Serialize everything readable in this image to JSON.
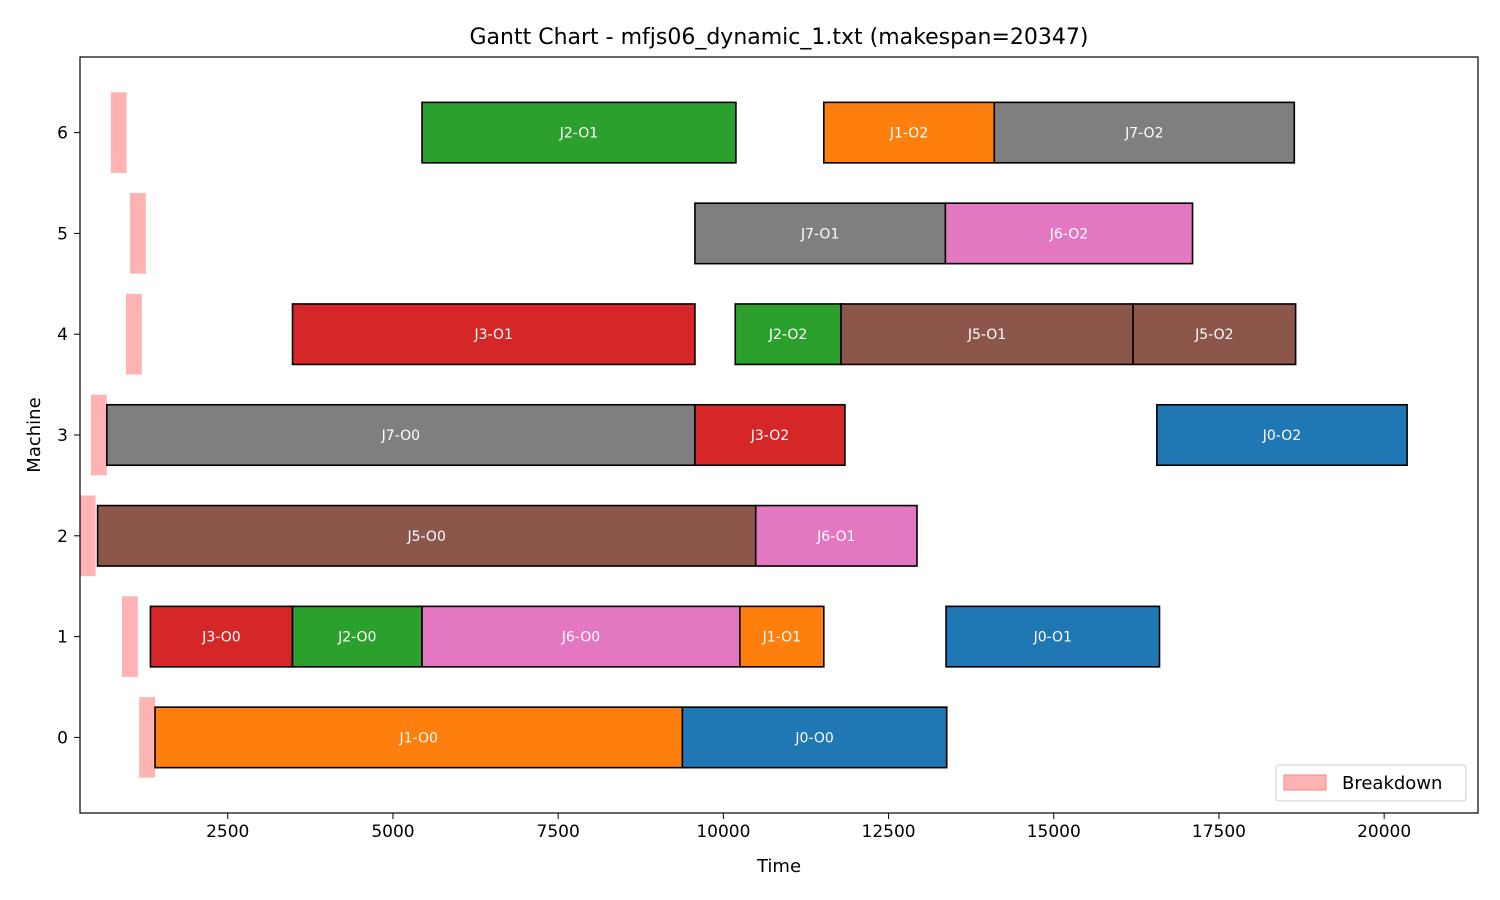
{
  "chart_data": {
    "type": "gantt",
    "title": "Gantt Chart - mfjs06_dynamic_1.txt (makespan=20347)",
    "xlabel": "Time",
    "ylabel": "Machine",
    "xlim": [
      264,
      21420
    ],
    "ylim": [
      -0.75,
      6.75
    ],
    "xticks": [
      2500,
      5000,
      7500,
      10000,
      12500,
      15000,
      17500,
      20000
    ],
    "yticks": [
      0,
      1,
      2,
      3,
      4,
      5,
      6
    ],
    "grid": false,
    "legend": {
      "position": "bottom-right",
      "entries": [
        "Breakdown"
      ]
    },
    "colors": {
      "J0": "#1f77b4",
      "J1": "#ff7f0e",
      "J2": "#2ca02c",
      "J3": "#d62728",
      "J5": "#8c564b",
      "J6": "#e377c2",
      "J7": "#7f7f7f",
      "breakdown": "#ffb3b3"
    },
    "operations": [
      {
        "label": "J1-O0",
        "job": "J1",
        "machine": 0,
        "start": 1400,
        "end": 9380
      },
      {
        "label": "J0-O0",
        "job": "J0",
        "machine": 0,
        "start": 9380,
        "end": 13380
      },
      {
        "label": "J3-O0",
        "job": "J3",
        "machine": 1,
        "start": 1330,
        "end": 3480
      },
      {
        "label": "J2-O0",
        "job": "J2",
        "machine": 1,
        "start": 3480,
        "end": 5440
      },
      {
        "label": "J6-O0",
        "job": "J6",
        "machine": 1,
        "start": 5440,
        "end": 10250
      },
      {
        "label": "J1-O1",
        "job": "J1",
        "machine": 1,
        "start": 10250,
        "end": 11520
      },
      {
        "label": "J0-O1",
        "job": "J0",
        "machine": 1,
        "start": 13370,
        "end": 16600
      },
      {
        "label": "J5-O0",
        "job": "J5",
        "machine": 2,
        "start": 530,
        "end": 10490
      },
      {
        "label": "J6-O1",
        "job": "J6",
        "machine": 2,
        "start": 10490,
        "end": 12930
      },
      {
        "label": "J7-O0",
        "job": "J7",
        "machine": 3,
        "start": 670,
        "end": 9570
      },
      {
        "label": "J3-O2",
        "job": "J3",
        "machine": 3,
        "start": 9570,
        "end": 11840
      },
      {
        "label": "J0-O2",
        "job": "J0",
        "machine": 3,
        "start": 16560,
        "end": 20347
      },
      {
        "label": "J3-O1",
        "job": "J3",
        "machine": 4,
        "start": 3480,
        "end": 9570
      },
      {
        "label": "J2-O2",
        "job": "J2",
        "machine": 4,
        "start": 10180,
        "end": 11780
      },
      {
        "label": "J5-O1",
        "job": "J5",
        "machine": 4,
        "start": 11780,
        "end": 16200
      },
      {
        "label": "J5-O2",
        "job": "J5",
        "machine": 4,
        "start": 16200,
        "end": 18660
      },
      {
        "label": "J7-O1",
        "job": "J7",
        "machine": 5,
        "start": 9570,
        "end": 13360
      },
      {
        "label": "J6-O2",
        "job": "J6",
        "machine": 5,
        "start": 13360,
        "end": 17100
      },
      {
        "label": "J2-O1",
        "job": "J2",
        "machine": 6,
        "start": 5440,
        "end": 10190
      },
      {
        "label": "J1-O2",
        "job": "J1",
        "machine": 6,
        "start": 11520,
        "end": 14100
      },
      {
        "label": "J7-O2",
        "job": "J7",
        "machine": 6,
        "start": 14100,
        "end": 18640
      }
    ],
    "breakdowns": [
      {
        "machine": 0,
        "start": 1160,
        "end": 1400
      },
      {
        "machine": 1,
        "start": 900,
        "end": 1140
      },
      {
        "machine": 2,
        "start": 264,
        "end": 500
      },
      {
        "machine": 3,
        "start": 430,
        "end": 670
      },
      {
        "machine": 4,
        "start": 960,
        "end": 1200
      },
      {
        "machine": 5,
        "start": 1020,
        "end": 1260
      },
      {
        "machine": 6,
        "start": 730,
        "end": 970
      }
    ]
  }
}
